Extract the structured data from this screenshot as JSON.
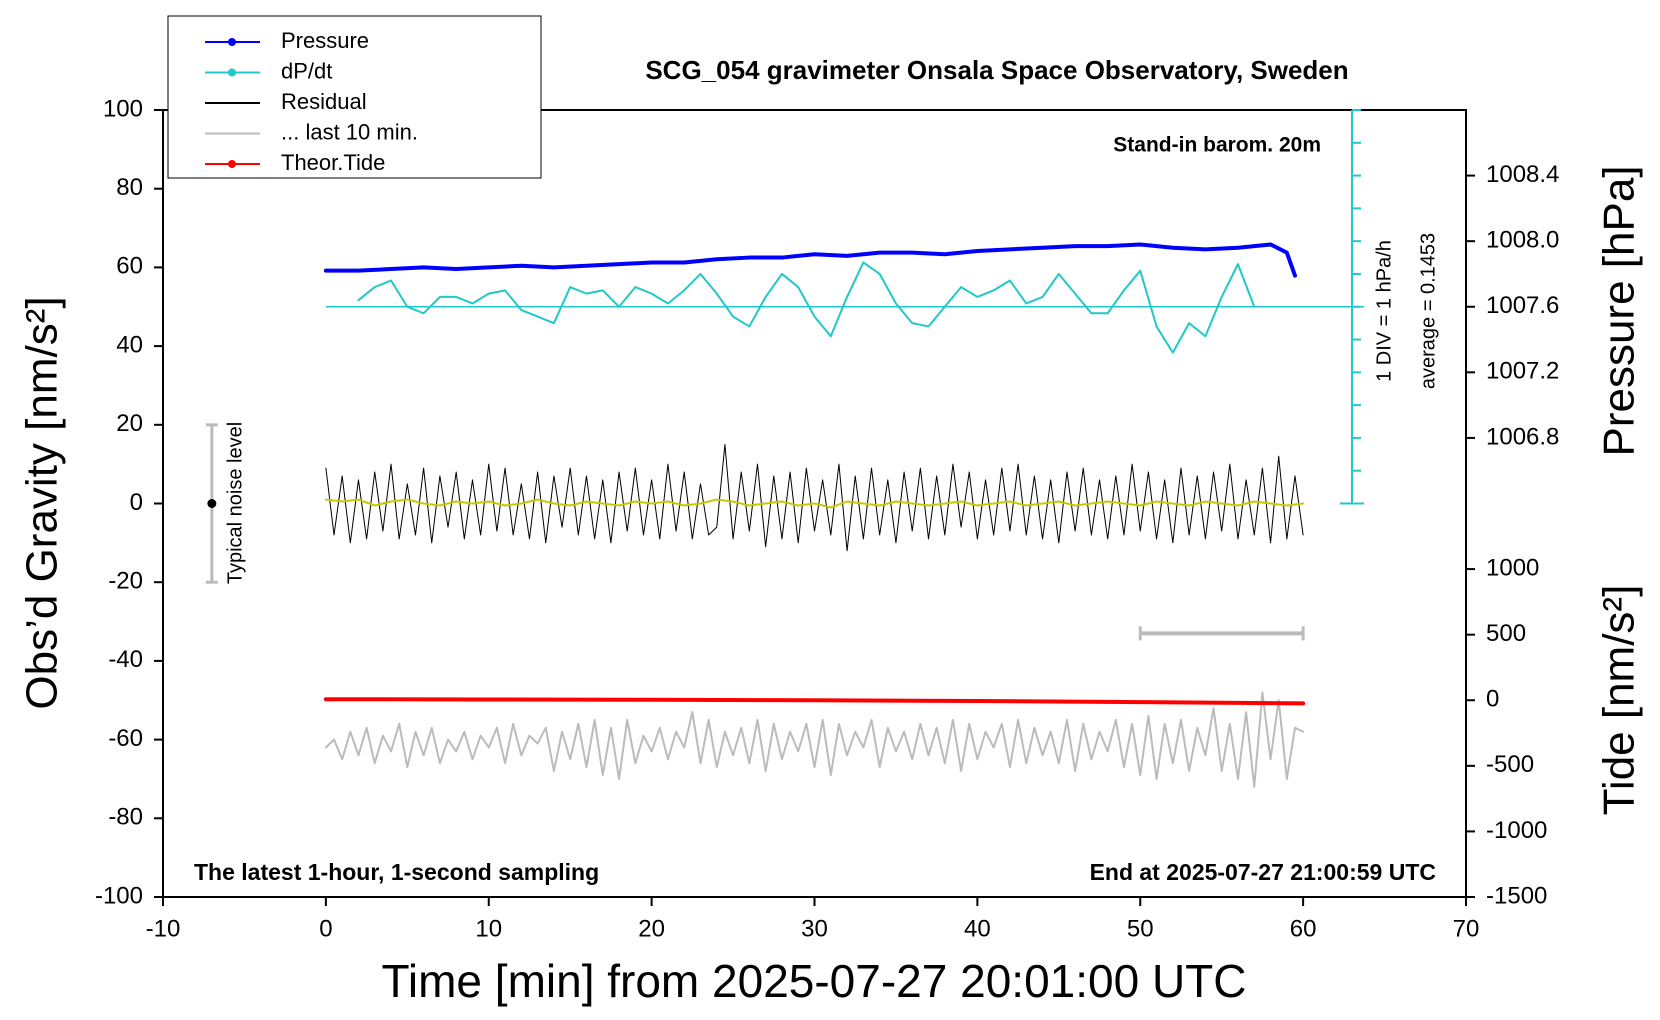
{
  "chart_data": {
    "type": "line",
    "title": "SCG_054 gravimeter Onsala Space Observatory, Sweden",
    "x_label": "Time [min] from 2025-07-27 20:01:00 UTC",
    "y_label": "Obs’d Gravity [nm/s²]",
    "y2_label": "Pressure [hPa]",
    "y3_label": "Tide [nm/s²]",
    "xlim": [
      -10,
      70
    ],
    "xticks": [
      -10,
      0,
      10,
      20,
      30,
      40,
      50,
      60,
      70
    ],
    "ylim": [
      -100,
      100
    ],
    "yticks": [
      -100,
      -80,
      -60,
      -40,
      -20,
      0,
      20,
      40,
      60,
      80,
      100
    ],
    "y2lim": [
      1004,
      1008.8
    ],
    "y2ticks": [
      1006.8,
      1007.2,
      1007.6,
      {
        "value": 1008,
        "label": "1008.0"
      },
      1008.4
    ],
    "y3lim": [
      -1500,
      4500
    ],
    "y3ticks": [
      -1500,
      -1000,
      -500,
      0,
      500,
      1000
    ],
    "y4lim": [
      -6,
      6
    ],
    "y4ticks": [
      -6,
      -5,
      -4,
      -3,
      -2,
      -1,
      0,
      1,
      2,
      3,
      4,
      5,
      6
    ],
    "annotations": {
      "barometer": "Stand-in barom. 20m",
      "div": "1 DIV = 1 hPa/h",
      "average": "average = 0.1453",
      "sampling": "The latest 1-hour, 1-second sampling",
      "end": "End at 2025-07-27 21:00:59 UTC"
    },
    "noise_bar": {
      "x": -7,
      "center": 0,
      "low": -20,
      "high": 20,
      "label": "Typical noise level"
    },
    "window": {
      "x": [
        50,
        60
      ],
      "y": -33,
      "color": "#bbbbbb"
    },
    "series": [
      {
        "name": "Pressure",
        "color": "#0000ff",
        "width": 4,
        "legend_marker": true,
        "axis": "y2",
        "x": [
          0,
          2,
          4,
          6,
          8,
          10,
          12,
          14,
          16,
          18,
          20,
          22,
          24,
          26,
          28,
          30,
          32,
          34,
          36,
          38,
          40,
          42,
          44,
          46,
          48,
          50,
          52,
          54,
          56,
          57,
          58,
          59,
          59.5
        ],
        "values": [
          1007.82,
          1007.82,
          1007.83,
          1007.84,
          1007.83,
          1007.84,
          1007.85,
          1007.84,
          1007.85,
          1007.86,
          1007.87,
          1007.87,
          1007.89,
          1007.9,
          1007.9,
          1007.92,
          1007.91,
          1007.93,
          1007.93,
          1007.92,
          1007.94,
          1007.95,
          1007.96,
          1007.97,
          1007.97,
          1007.98,
          1007.96,
          1007.95,
          1007.96,
          1007.97,
          1007.98,
          1007.93,
          1007.79
        ]
      },
      {
        "name": "dP/dt",
        "color": "#20c8c8",
        "width": 2,
        "legend_marker": true,
        "axis": "y4",
        "x": [
          2,
          3,
          4,
          5,
          6,
          7,
          8,
          9,
          10,
          11,
          12,
          13,
          14,
          15,
          16,
          17,
          18,
          19,
          20,
          21,
          22,
          23,
          24,
          25,
          26,
          27,
          28,
          29,
          30,
          31,
          32,
          33,
          34,
          35,
          36,
          37,
          38,
          39,
          40,
          41,
          42,
          43,
          44,
          45,
          46,
          47,
          48,
          49,
          50,
          51,
          52,
          53,
          54,
          55,
          56,
          57
        ],
        "values": [
          0.2,
          0.6,
          0.8,
          0,
          -0.2,
          0.3,
          0.3,
          0.1,
          0.4,
          0.5,
          -0.1,
          -0.3,
          -0.5,
          0.6,
          0.4,
          0.5,
          0,
          0.6,
          0.4,
          0.1,
          0.5,
          1.0,
          0.4,
          -0.3,
          -0.6,
          0.3,
          1.0,
          0.6,
          -0.3,
          -0.9,
          0.3,
          1.35,
          1.0,
          0.1,
          -0.5,
          -0.6,
          0,
          0.6,
          0.3,
          0.5,
          0.8,
          0.1,
          0.3,
          1.0,
          0.4,
          -0.2,
          -0.2,
          0.5,
          1.1,
          -0.6,
          -1.4,
          -0.5,
          -0.9,
          0.3,
          1.3,
          0
        ]
      },
      {
        "name": "Residual",
        "color": "#000000",
        "width": 1,
        "axis": "y",
        "x": [
          0,
          0.5,
          1,
          1.5,
          2,
          2.5,
          3,
          3.5,
          4,
          4.5,
          5,
          5.5,
          6,
          6.5,
          7,
          7.5,
          8,
          8.5,
          9,
          9.5,
          10,
          10.5,
          11,
          11.5,
          12,
          12.5,
          13,
          13.5,
          14,
          14.5,
          15,
          15.5,
          16,
          16.5,
          17,
          17.5,
          18,
          18.5,
          19,
          19.5,
          20,
          20.5,
          21,
          21.5,
          22,
          22.5,
          23,
          23.5,
          24,
          24.5,
          25,
          25.5,
          26,
          26.5,
          27,
          27.5,
          28,
          28.5,
          29,
          29.5,
          30,
          30.5,
          31,
          31.5,
          32,
          32.5,
          33,
          33.5,
          34,
          34.5,
          35,
          35.5,
          36,
          36.5,
          37,
          37.5,
          38,
          38.5,
          39,
          39.5,
          40,
          40.5,
          41,
          41.5,
          42,
          42.5,
          43,
          43.5,
          44,
          44.5,
          45,
          45.5,
          46,
          46.5,
          47,
          47.5,
          48,
          48.5,
          49,
          49.5,
          50,
          50.5,
          51,
          51.5,
          52,
          52.5,
          53,
          53.5,
          54,
          54.5,
          55,
          55.5,
          56,
          56.5,
          57,
          57.5,
          58,
          58.5,
          59,
          59.5,
          60
        ],
        "values": [
          9,
          -8,
          7,
          -10,
          6,
          -9,
          8,
          -7,
          10,
          -9,
          5,
          -8,
          9,
          -10,
          7,
          -6,
          8,
          -9,
          6,
          -8,
          10,
          -7,
          9,
          -8,
          5,
          -9,
          8,
          -10,
          7,
          -6,
          9,
          -8,
          7,
          -9,
          6,
          -10,
          8,
          -7,
          9,
          -8,
          6,
          -9,
          10,
          -7,
          8,
          -9,
          5,
          -8,
          -6,
          15,
          -9,
          8,
          -7,
          10,
          -11,
          7,
          -9,
          8,
          -10,
          9,
          -7,
          6,
          -8,
          10,
          -12,
          7,
          -9,
          9,
          -8,
          6,
          -10,
          8,
          -7,
          9,
          -9,
          7,
          -8,
          10,
          -6,
          8,
          -9,
          6,
          -8,
          9,
          -7,
          10,
          -8,
          7,
          -9,
          6,
          -10,
          8,
          -7,
          9,
          -8,
          6,
          -9,
          7,
          -8,
          10,
          -7,
          8,
          -9,
          6,
          -10,
          9,
          -8,
          7,
          -9,
          8,
          -7,
          10,
          -9,
          6,
          -8,
          9,
          -10,
          12,
          -9,
          7,
          -8
        ]
      },
      {
        "color": "#c8c800",
        "width": 2,
        "axis": "y",
        "x": [
          0,
          1,
          2,
          3,
          4,
          5,
          6,
          7,
          8,
          9,
          10,
          11,
          12,
          13,
          14,
          15,
          16,
          17,
          18,
          19,
          20,
          21,
          22,
          23,
          24,
          25,
          26,
          27,
          28,
          29,
          30,
          31,
          32,
          33,
          34,
          35,
          36,
          37,
          38,
          39,
          40,
          41,
          42,
          43,
          44,
          45,
          46,
          47,
          48,
          49,
          50,
          51,
          52,
          53,
          54,
          55,
          56,
          57,
          58,
          59,
          60
        ],
        "values": [
          1,
          0.5,
          1,
          -0.5,
          0.5,
          1,
          0,
          -0.5,
          0.5,
          0,
          0.5,
          -0.5,
          0,
          1,
          0,
          -0.5,
          0.5,
          0,
          -0.5,
          0.5,
          0,
          0.5,
          -0.5,
          0,
          1,
          0.5,
          -0.5,
          0,
          0.5,
          -0.5,
          0,
          -1,
          0.5,
          0,
          -0.5,
          0.5,
          0,
          -0.5,
          0,
          0.5,
          -0.5,
          0,
          0.5,
          -0.5,
          0,
          0.5,
          -0.5,
          0,
          0.5,
          0,
          -0.5,
          0.5,
          0,
          -0.5,
          0.5,
          0,
          -0.5,
          0.5,
          0,
          -0.5,
          0
        ]
      },
      {
        "name": "... last 10 min.",
        "color": "#bbbbbb",
        "width": 2,
        "axis": "y",
        "x": [
          0,
          0.5,
          1,
          1.5,
          2,
          2.5,
          3,
          3.5,
          4,
          4.5,
          5,
          5.5,
          6,
          6.5,
          7,
          7.5,
          8,
          8.5,
          9,
          9.5,
          10,
          10.5,
          11,
          11.5,
          12,
          12.5,
          13,
          13.5,
          14,
          14.5,
          15,
          15.5,
          16,
          16.5,
          17,
          17.5,
          18,
          18.5,
          19,
          19.5,
          20,
          20.5,
          21,
          21.5,
          22,
          22.5,
          23,
          23.5,
          24,
          24.5,
          25,
          25.5,
          26,
          26.5,
          27,
          27.5,
          28,
          28.5,
          29,
          29.5,
          30,
          30.5,
          31,
          31.5,
          32,
          32.5,
          33,
          33.5,
          34,
          34.5,
          35,
          35.5,
          36,
          36.5,
          37,
          37.5,
          38,
          38.5,
          39,
          39.5,
          40,
          40.5,
          41,
          41.5,
          42,
          42.5,
          43,
          43.5,
          44,
          44.5,
          45,
          45.5,
          46,
          46.5,
          47,
          47.5,
          48,
          48.5,
          49,
          49.5,
          50,
          50.5,
          51,
          51.5,
          52,
          52.5,
          53,
          53.5,
          54,
          54.5,
          55,
          55.5,
          56,
          56.5,
          57,
          57.5,
          58,
          58.5,
          59,
          59.5,
          60
        ],
        "values": [
          -62,
          -60,
          -65,
          -58,
          -64,
          -57,
          -66,
          -59,
          -63,
          -56,
          -67,
          -58,
          -64,
          -57,
          -66,
          -60,
          -63,
          -58,
          -65,
          -59,
          -62,
          -57,
          -66,
          -56,
          -64,
          -59,
          -61,
          -57,
          -68,
          -58,
          -65,
          -56,
          -67,
          -55,
          -69,
          -57,
          -70,
          -55,
          -66,
          -59,
          -63,
          -57,
          -65,
          -58,
          -62,
          -53,
          -66,
          -55,
          -67,
          -58,
          -64,
          -57,
          -66,
          -55,
          -68,
          -56,
          -65,
          -58,
          -63,
          -56,
          -67,
          -55,
          -69,
          -56,
          -64,
          -58,
          -62,
          -55,
          -67,
          -57,
          -63,
          -58,
          -65,
          -56,
          -64,
          -57,
          -66,
          -55,
          -68,
          -56,
          -65,
          -58,
          -62,
          -56,
          -67,
          -55,
          -66,
          -57,
          -64,
          -58,
          -66,
          -55,
          -68,
          -56,
          -65,
          -58,
          -63,
          -55,
          -67,
          -56,
          -69,
          -54,
          -70,
          -56,
          -66,
          -55,
          -68,
          -57,
          -64,
          -52,
          -68,
          -56,
          -70,
          -53,
          -72,
          -48,
          -65,
          -50,
          -70,
          -57,
          -58
        ]
      },
      {
        "name": "Theor.Tide",
        "color": "#ff0000",
        "width": 4,
        "legend_marker": true,
        "axis": "y3",
        "x": [
          0,
          10,
          20,
          30,
          40,
          50,
          60
        ],
        "values": [
          8,
          6,
          4,
          0,
          -6,
          -14,
          -24
        ]
      }
    ]
  }
}
